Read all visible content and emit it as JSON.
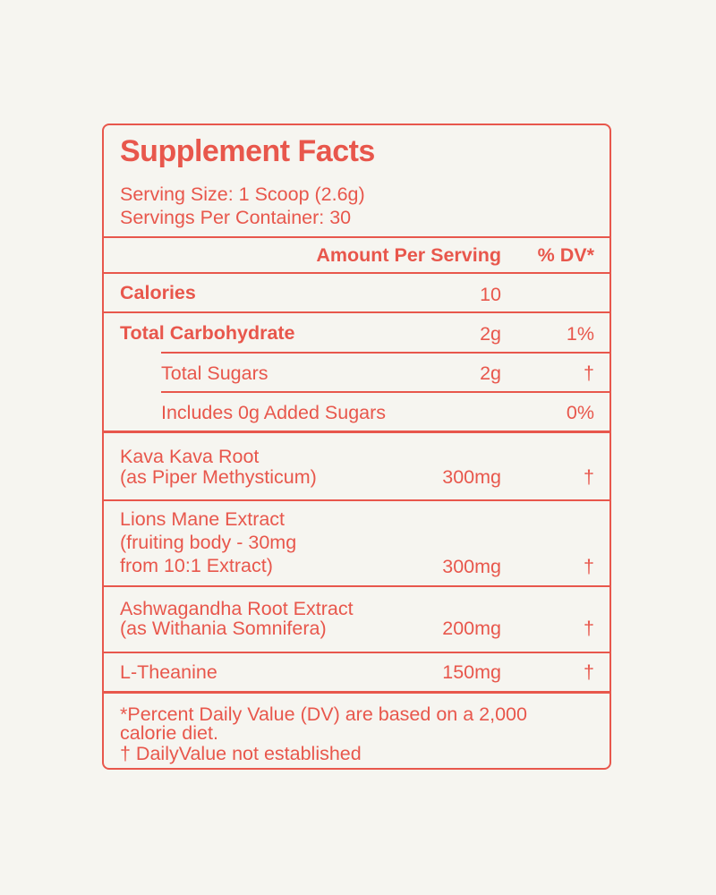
{
  "title": "Supplement Facts",
  "serving_size": "Serving Size: 1 Scoop (2.6g)",
  "servings_per_container": "Servings Per Container: 30",
  "header": {
    "amount": "Amount Per Serving",
    "dv": "% DV*"
  },
  "rows": [
    {
      "name": "Calories",
      "amount": "10",
      "dv": ""
    },
    {
      "name": "Total Carbohydrate",
      "amount": "2g",
      "dv": "1%"
    },
    {
      "name": "Total Sugars",
      "amount": "2g",
      "dv": "†"
    },
    {
      "name": "Includes 0g Added Sugars",
      "amount": "",
      "dv": "0%"
    }
  ],
  "ingredients": [
    {
      "lines": [
        "Kava Kava Root",
        "(as Piper Methysticum)"
      ],
      "amount": "300mg",
      "dv": "†"
    },
    {
      "lines": [
        "Lions Mane Extract",
        "(fruiting body - 30mg",
        "from 10:1 Extract)"
      ],
      "amount": "300mg",
      "dv": "†"
    },
    {
      "lines": [
        "Ashwagandha Root Extract",
        "(as Withania Somnifera)"
      ],
      "amount": "200mg",
      "dv": "†"
    },
    {
      "lines": [
        "L-Theanine"
      ],
      "amount": "150mg",
      "dv": "†"
    }
  ],
  "footnote": {
    "line1": "*Percent Daily Value (DV) are based on a 2,000",
    "line2": "calorie diet.",
    "line3": "† DailyValue not established"
  }
}
